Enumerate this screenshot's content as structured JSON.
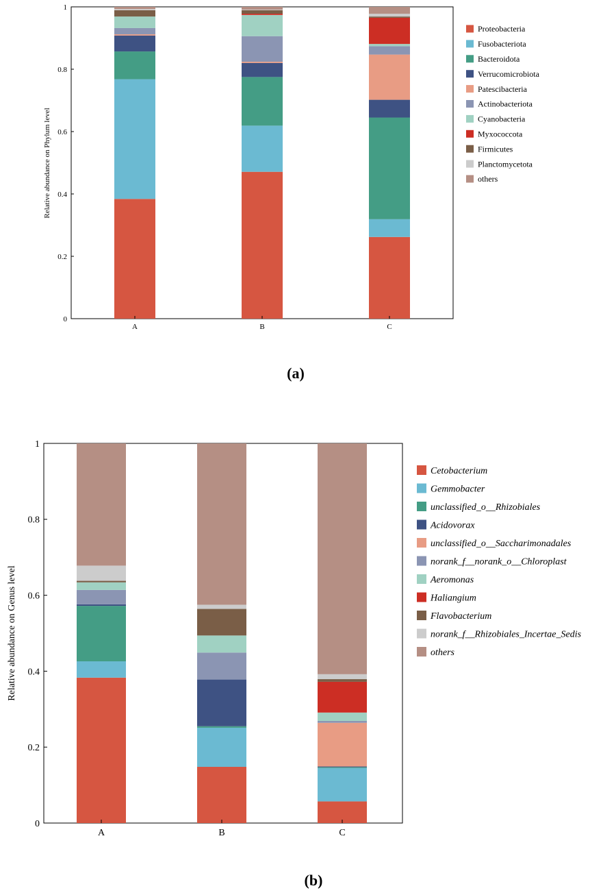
{
  "chart_data": [
    {
      "type": "bar",
      "stacked": true,
      "panel_label": "(a)",
      "ylabel": "Relative abundance on Phylum level",
      "xlabel": "",
      "ylim": [
        0,
        1
      ],
      "yticks": [
        "0",
        "0.2",
        "0.4",
        "0.6",
        "0.8",
        "1"
      ],
      "categories": [
        "A",
        "B",
        "C"
      ],
      "legend_position": "right",
      "series": [
        {
          "name": "Proteobacteria",
          "color": "#d65641",
          "values": [
            0.384,
            0.471,
            0.262
          ]
        },
        {
          "name": "Fusobacteriota",
          "color": "#6bbad2",
          "values": [
            0.384,
            0.148,
            0.057
          ]
        },
        {
          "name": "Bacteroidota",
          "color": "#449d85",
          "values": [
            0.089,
            0.156,
            0.326
          ]
        },
        {
          "name": "Verrucomicrobiota",
          "color": "#3e5283",
          "values": [
            0.051,
            0.045,
            0.057
          ]
        },
        {
          "name": "Patescibacteria",
          "color": "#e89c84",
          "values": [
            0.004,
            0.004,
            0.145
          ]
        },
        {
          "name": "Actinobacteriota",
          "color": "#8b95b3",
          "values": [
            0.02,
            0.082,
            0.027
          ]
        },
        {
          "name": "Cyanobacteria",
          "color": "#a0d1c2",
          "values": [
            0.037,
            0.068,
            0.007
          ]
        },
        {
          "name": "Myxococcota",
          "color": "#cc2e24",
          "values": [
            0.0,
            0.004,
            0.084
          ]
        },
        {
          "name": "Firmicutes",
          "color": "#7a5e47",
          "values": [
            0.02,
            0.011,
            0.004
          ]
        },
        {
          "name": "Planctomycetota",
          "color": "#cccccc",
          "values": [
            0.004,
            0.002,
            0.009
          ]
        },
        {
          "name": "others",
          "color": "#b58f84",
          "values": [
            0.007,
            0.009,
            0.022
          ]
        }
      ]
    },
    {
      "type": "bar",
      "stacked": true,
      "panel_label": "(b)",
      "ylabel": "Relative abundance on Genus level",
      "xlabel": "",
      "ylim": [
        0,
        1
      ],
      "yticks": [
        "0",
        "0.2",
        "0.4",
        "0.6",
        "0.8",
        "1"
      ],
      "categories": [
        "A",
        "B",
        "C"
      ],
      "legend_position": "right",
      "series": [
        {
          "name": "Cetobacterium",
          "color": "#d65641",
          "values": [
            0.383,
            0.148,
            0.057
          ]
        },
        {
          "name": "Gemmobacter",
          "color": "#6bbad2",
          "values": [
            0.043,
            0.103,
            0.088
          ]
        },
        {
          "name": "unclassified_o__Rhizobiales",
          "color": "#449d85",
          "values": [
            0.146,
            0.004,
            0.002
          ]
        },
        {
          "name": "Acidovorax",
          "color": "#3e5283",
          "values": [
            0.004,
            0.123,
            0.002
          ]
        },
        {
          "name": "unclassified_o__Saccharimonadales",
          "color": "#e89c84",
          "values": [
            0.0,
            0.0,
            0.115
          ]
        },
        {
          "name": "norank_f__norank_o__Chloroplast",
          "color": "#8b95b3",
          "values": [
            0.038,
            0.071,
            0.005
          ]
        },
        {
          "name": "Aeromonas",
          "color": "#a0d1c2",
          "values": [
            0.02,
            0.045,
            0.022
          ]
        },
        {
          "name": "Haliangium",
          "color": "#cc2e24",
          "values": [
            0.0,
            0.0,
            0.081
          ]
        },
        {
          "name": "Flavobacterium",
          "color": "#7a5e47",
          "values": [
            0.004,
            0.07,
            0.007
          ]
        },
        {
          "name": "norank_f__Rhizobiales_Incertae_Sedis",
          "color": "#cccccc",
          "values": [
            0.04,
            0.011,
            0.013
          ]
        },
        {
          "name": "others",
          "color": "#b58f84",
          "values": [
            0.322,
            0.425,
            0.608
          ]
        }
      ]
    }
  ]
}
